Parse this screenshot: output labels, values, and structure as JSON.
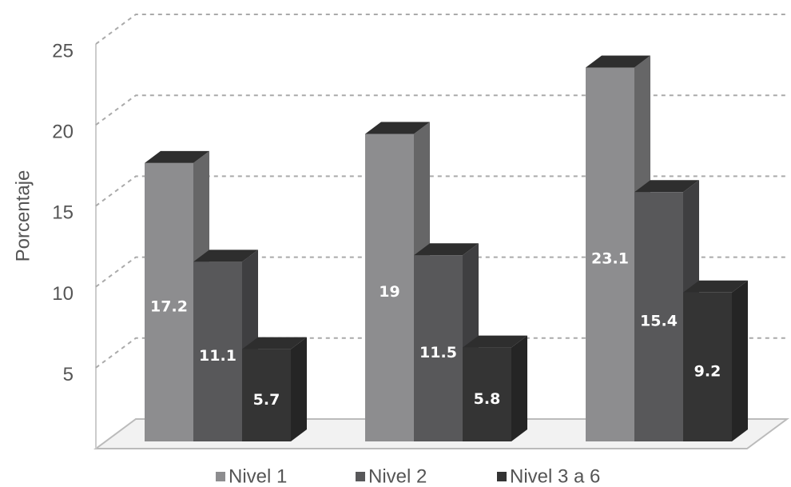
{
  "chart_data": {
    "type": "bar3d",
    "y_label": "Porcentaje",
    "categories": [
      null,
      null,
      null
    ],
    "series": [
      {
        "name": "Nivel 1",
        "color": "#8d8d8f",
        "values": [
          17.2,
          19,
          23.1
        ]
      },
      {
        "name": "Nivel 2",
        "color": "#58585a",
        "values": [
          11.1,
          11.5,
          15.4
        ]
      },
      {
        "name": "Nivel 3 a 6",
        "color": "#343434",
        "values": [
          5.7,
          5.8,
          9.2
        ]
      }
    ],
    "ylim": [
      0,
      25
    ],
    "yticks": [
      5,
      10,
      15,
      20,
      25
    ],
    "grid": true,
    "legend": "bottom"
  }
}
